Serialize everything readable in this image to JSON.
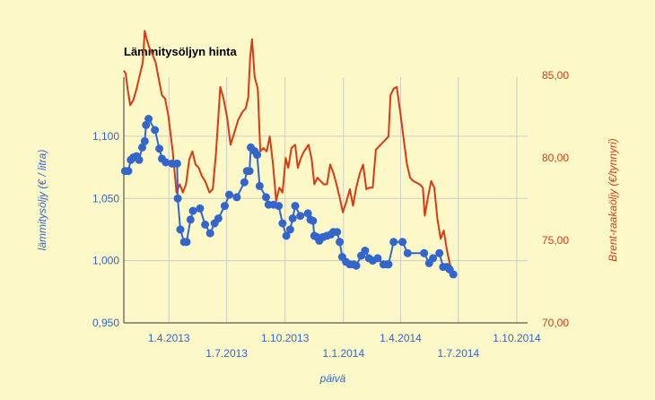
{
  "chart_data": {
    "type": "line",
    "title": "Lämmitysöljyn hinta",
    "xlabel": "päivä",
    "ylabel_left": "lämmitysöljy (€ / litra)",
    "ylabel_right": "Brent-raakaöljy (€/tynnyri)",
    "x_ticks_upper": [
      "1.4.2013",
      "1.10.2013",
      "1.4.2014",
      "1.10.2014"
    ],
    "x_ticks_lower": [
      "1.7.2013",
      "1.1.2014",
      "1.7.2014"
    ],
    "y_left_ticks": [
      "0,950",
      "1,000",
      "1,050",
      "1,100"
    ],
    "y_right_ticks": [
      "70,00",
      "75,00",
      "80,00",
      "85,00"
    ],
    "ylim_left": [
      0.95,
      1.1475
    ],
    "ylim_right": [
      70,
      84.9
    ],
    "x_axis": {
      "start": "2013-01-20",
      "end": "2014-10-18"
    },
    "grid": true,
    "colors": {
      "background": "#fdf8c8",
      "heating_oil": "#3366cc",
      "brent": "#dc3912",
      "grid": "#cccccc",
      "left_axis_text": "#3366cc",
      "right_axis_text": "#dc3912"
    },
    "series": [
      {
        "name": "",
        "axis": "left",
        "color": "#3366cc",
        "points": [
          [
            "2013-01-22",
            1.072
          ],
          [
            "2013-01-27",
            1.072
          ],
          [
            "2013-01-31",
            1.081
          ],
          [
            "2013-02-04",
            1.083
          ],
          [
            "2013-02-09",
            1.084
          ],
          [
            "2013-02-13",
            1.081
          ],
          [
            "2013-02-18",
            1.091
          ],
          [
            "2013-02-22",
            1.096
          ],
          [
            "2013-02-24",
            1.109
          ],
          [
            "2013-02-28",
            1.114
          ],
          [
            "2013-03-10",
            1.105
          ],
          [
            "2013-03-17",
            1.09
          ],
          [
            "2013-03-21",
            1.082
          ],
          [
            "2013-03-27",
            1.079
          ],
          [
            "2013-04-06",
            1.078
          ],
          [
            "2013-04-14",
            1.078
          ],
          [
            "2013-04-15",
            1.05
          ],
          [
            "2013-04-19",
            1.025
          ],
          [
            "2013-04-25",
            1.015
          ],
          [
            "2013-04-29",
            1.015
          ],
          [
            "2013-05-05",
            1.033
          ],
          [
            "2013-05-09",
            1.04
          ],
          [
            "2013-05-20",
            1.042
          ],
          [
            "2013-05-28",
            1.029
          ],
          [
            "2013-06-05",
            1.022
          ],
          [
            "2013-06-12",
            1.03
          ],
          [
            "2013-06-18",
            1.034
          ],
          [
            "2013-06-28",
            1.044
          ],
          [
            "2013-07-05",
            1.053
          ],
          [
            "2013-07-17",
            1.051
          ],
          [
            "2013-07-29",
            1.063
          ],
          [
            "2013-08-02",
            1.072
          ],
          [
            "2013-08-06",
            1.072
          ],
          [
            "2013-08-08",
            1.091
          ],
          [
            "2013-08-14",
            1.088
          ],
          [
            "2013-08-18",
            1.085
          ],
          [
            "2013-08-22",
            1.06
          ],
          [
            "2013-09-01",
            1.051
          ],
          [
            "2013-09-05",
            1.045
          ],
          [
            "2013-09-13",
            1.045
          ],
          [
            "2013-09-21",
            1.044
          ],
          [
            "2013-09-27",
            1.03
          ],
          [
            "2013-10-03",
            1.02
          ],
          [
            "2013-10-09",
            1.025
          ],
          [
            "2013-10-13",
            1.034
          ],
          [
            "2013-10-17",
            1.044
          ],
          [
            "2013-10-25",
            1.036
          ],
          [
            "2013-11-06",
            1.038
          ],
          [
            "2013-11-10",
            1.033
          ],
          [
            "2013-11-14",
            1.032
          ],
          [
            "2013-11-16",
            1.02
          ],
          [
            "2013-11-20",
            1.019
          ],
          [
            "2013-11-24",
            1.016
          ],
          [
            "2013-11-30",
            1.019
          ],
          [
            "2013-12-06",
            1.02
          ],
          [
            "2013-12-12",
            1.021
          ],
          [
            "2013-12-16",
            1.023
          ],
          [
            "2013-12-22",
            1.023
          ],
          [
            "2013-12-26",
            1.015
          ],
          [
            "2013-12-30",
            1.003
          ],
          [
            "2014-01-05",
            0.999
          ],
          [
            "2014-01-11",
            0.997
          ],
          [
            "2014-01-17",
            0.997
          ],
          [
            "2014-01-21",
            0.996
          ],
          [
            "2014-01-29",
            1.004
          ],
          [
            "2014-02-04",
            1.008
          ],
          [
            "2014-02-10",
            1.002
          ],
          [
            "2014-02-16",
            1.0
          ],
          [
            "2014-02-24",
            1.002
          ],
          [
            "2014-03-05",
            0.997
          ],
          [
            "2014-03-11",
            0.997
          ],
          [
            "2014-03-13",
            0.997
          ],
          [
            "2014-03-21",
            1.015
          ],
          [
            "2014-04-04",
            1.015
          ],
          [
            "2014-04-12",
            1.006
          ],
          [
            "2014-05-08",
            1.006
          ],
          [
            "2014-05-16",
            0.998
          ],
          [
            "2014-05-22",
            1.002
          ],
          [
            "2014-06-01",
            1.006
          ],
          [
            "2014-06-07",
            0.995
          ],
          [
            "2014-06-13",
            0.995
          ],
          [
            "2014-06-17",
            0.993
          ],
          [
            "2014-06-23",
            0.989
          ]
        ]
      },
      {
        "name": "",
        "axis": "right",
        "color": "#dc3912",
        "points": [
          [
            "2013-01-20",
            85.3
          ],
          [
            "2013-01-23",
            85.1
          ],
          [
            "2013-01-26",
            84.2
          ],
          [
            "2013-01-30",
            83.2
          ],
          [
            "2013-02-04",
            83.5
          ],
          [
            "2013-02-09",
            84.2
          ],
          [
            "2013-02-14",
            85.0
          ],
          [
            "2013-02-19",
            85.8
          ],
          [
            "2013-02-22",
            87.7
          ],
          [
            "2013-02-25",
            87.2
          ],
          [
            "2013-03-01",
            86.7
          ],
          [
            "2013-03-06",
            86.3
          ],
          [
            "2013-03-11",
            85.8
          ],
          [
            "2013-03-16",
            84.8
          ],
          [
            "2013-03-21",
            83.8
          ],
          [
            "2013-03-26",
            83.6
          ],
          [
            "2013-03-31",
            82.6
          ],
          [
            "2013-04-07",
            80.4
          ],
          [
            "2013-04-13",
            77.9
          ],
          [
            "2013-04-18",
            78.4
          ],
          [
            "2013-04-23",
            77.9
          ],
          [
            "2013-04-28",
            78.4
          ],
          [
            "2013-05-03",
            79.9
          ],
          [
            "2013-05-08",
            80.4
          ],
          [
            "2013-05-13",
            79.6
          ],
          [
            "2013-05-18",
            79.4
          ],
          [
            "2013-05-23",
            78.9
          ],
          [
            "2013-05-28",
            78.6
          ],
          [
            "2013-06-04",
            77.9
          ],
          [
            "2013-06-09",
            78.1
          ],
          [
            "2013-06-14",
            80.2
          ],
          [
            "2013-06-21",
            84.3
          ],
          [
            "2013-06-26",
            83.6
          ],
          [
            "2013-07-02",
            82.4
          ],
          [
            "2013-07-07",
            80.8
          ],
          [
            "2013-07-12",
            81.4
          ],
          [
            "2013-07-19",
            82.3
          ],
          [
            "2013-07-26",
            82.8
          ],
          [
            "2013-07-31",
            83.0
          ],
          [
            "2013-08-04",
            83.7
          ],
          [
            "2013-08-07",
            86.1
          ],
          [
            "2013-08-10",
            87.2
          ],
          [
            "2013-08-14",
            84.9
          ],
          [
            "2013-08-19",
            84.2
          ],
          [
            "2013-08-23",
            80.4
          ],
          [
            "2013-08-28",
            80.6
          ],
          [
            "2013-09-02",
            80.4
          ],
          [
            "2013-09-07",
            81.3
          ],
          [
            "2013-09-12",
            79.6
          ],
          [
            "2013-09-17",
            77.4
          ],
          [
            "2013-09-22",
            78.2
          ],
          [
            "2013-09-27",
            77.9
          ],
          [
            "2013-10-02",
            80.0
          ],
          [
            "2013-10-06",
            79.4
          ],
          [
            "2013-10-11",
            80.6
          ],
          [
            "2013-10-17",
            80.8
          ],
          [
            "2013-10-21",
            79.4
          ],
          [
            "2013-10-26",
            80.0
          ],
          [
            "2013-10-31",
            80.4
          ],
          [
            "2013-11-07",
            80.8
          ],
          [
            "2013-11-12",
            79.9
          ],
          [
            "2013-11-16",
            78.4
          ],
          [
            "2013-11-21",
            78.8
          ],
          [
            "2013-11-26",
            78.6
          ],
          [
            "2013-12-01",
            78.4
          ],
          [
            "2013-12-06",
            78.4
          ],
          [
            "2013-12-11",
            79.6
          ],
          [
            "2013-12-16",
            79.1
          ],
          [
            "2013-12-21",
            78.4
          ],
          [
            "2013-12-26",
            77.6
          ],
          [
            "2013-12-31",
            76.7
          ],
          [
            "2014-01-06",
            77.4
          ],
          [
            "2014-01-11",
            78.1
          ],
          [
            "2014-01-16",
            77.1
          ],
          [
            "2014-01-21",
            78.2
          ],
          [
            "2014-01-27",
            79.1
          ],
          [
            "2014-02-01",
            79.6
          ],
          [
            "2014-02-06",
            78.1
          ],
          [
            "2014-02-11",
            78.2
          ],
          [
            "2014-02-16",
            78.2
          ],
          [
            "2014-02-21",
            80.5
          ],
          [
            "2014-02-26",
            80.7
          ],
          [
            "2014-03-03",
            80.9
          ],
          [
            "2014-03-08",
            81.1
          ],
          [
            "2014-03-13",
            81.3
          ],
          [
            "2014-03-16",
            83.8
          ],
          [
            "2014-03-21",
            84.2
          ],
          [
            "2014-03-26",
            84.3
          ],
          [
            "2014-04-01",
            82.6
          ],
          [
            "2014-04-06",
            81.1
          ],
          [
            "2014-04-11",
            79.6
          ],
          [
            "2014-04-16",
            78.8
          ],
          [
            "2014-04-21",
            78.6
          ],
          [
            "2014-04-26",
            78.5
          ],
          [
            "2014-05-01",
            78.4
          ],
          [
            "2014-05-06",
            78.2
          ],
          [
            "2014-05-09",
            76.5
          ],
          [
            "2014-05-14",
            77.6
          ],
          [
            "2014-05-19",
            78.6
          ],
          [
            "2014-05-24",
            78.2
          ],
          [
            "2014-05-29",
            76.3
          ],
          [
            "2014-06-03",
            75.1
          ],
          [
            "2014-06-08",
            75.6
          ],
          [
            "2014-06-13",
            74.4
          ],
          [
            "2014-06-18",
            73.5
          ],
          [
            "2014-06-23",
            73.2
          ]
        ]
      }
    ]
  }
}
